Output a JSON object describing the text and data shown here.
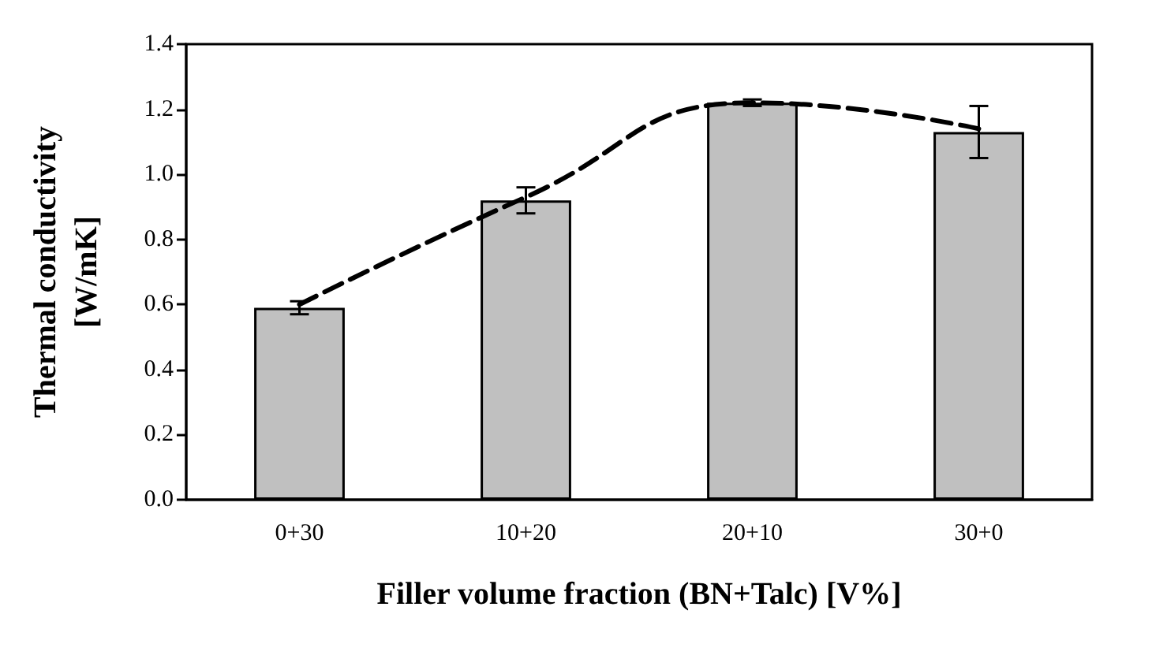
{
  "chart_data": {
    "type": "bar",
    "xlabel": "Filler volume fraction (BN+Talc) [V%]",
    "ylabel": "Thermal conductivity\n[W/mK]",
    "categories": [
      "0+30",
      "10+20",
      "20+10",
      "30+0"
    ],
    "series": [
      {
        "color": "#c0c0c0",
        "values": [
          0.59,
          0.92,
          1.22,
          1.13
        ],
        "errors": [
          0.02,
          0.04,
          0.01,
          0.08
        ]
      },
      {
        "type": "line",
        "color": "#000000",
        "line_style": "dashed",
        "marker": "none",
        "values": [
          0.6,
          0.93,
          1.22,
          1.14
        ]
      }
    ],
    "ylim": [
      0,
      1.4
    ],
    "yticks": [
      {
        "value": 0,
        "label": "0.0"
      },
      {
        "value": 0.2,
        "label": "0.2"
      },
      {
        "value": 0.4,
        "label": "0.4"
      },
      {
        "value": 0.6,
        "label": "0.6"
      },
      {
        "value": 0.8,
        "label": "0.8"
      },
      {
        "value": 1,
        "label": "1.0"
      },
      {
        "value": 1.2,
        "label": "1.2"
      },
      {
        "value": 1.4,
        "label": "1.4"
      }
    ],
    "grid": false
  }
}
